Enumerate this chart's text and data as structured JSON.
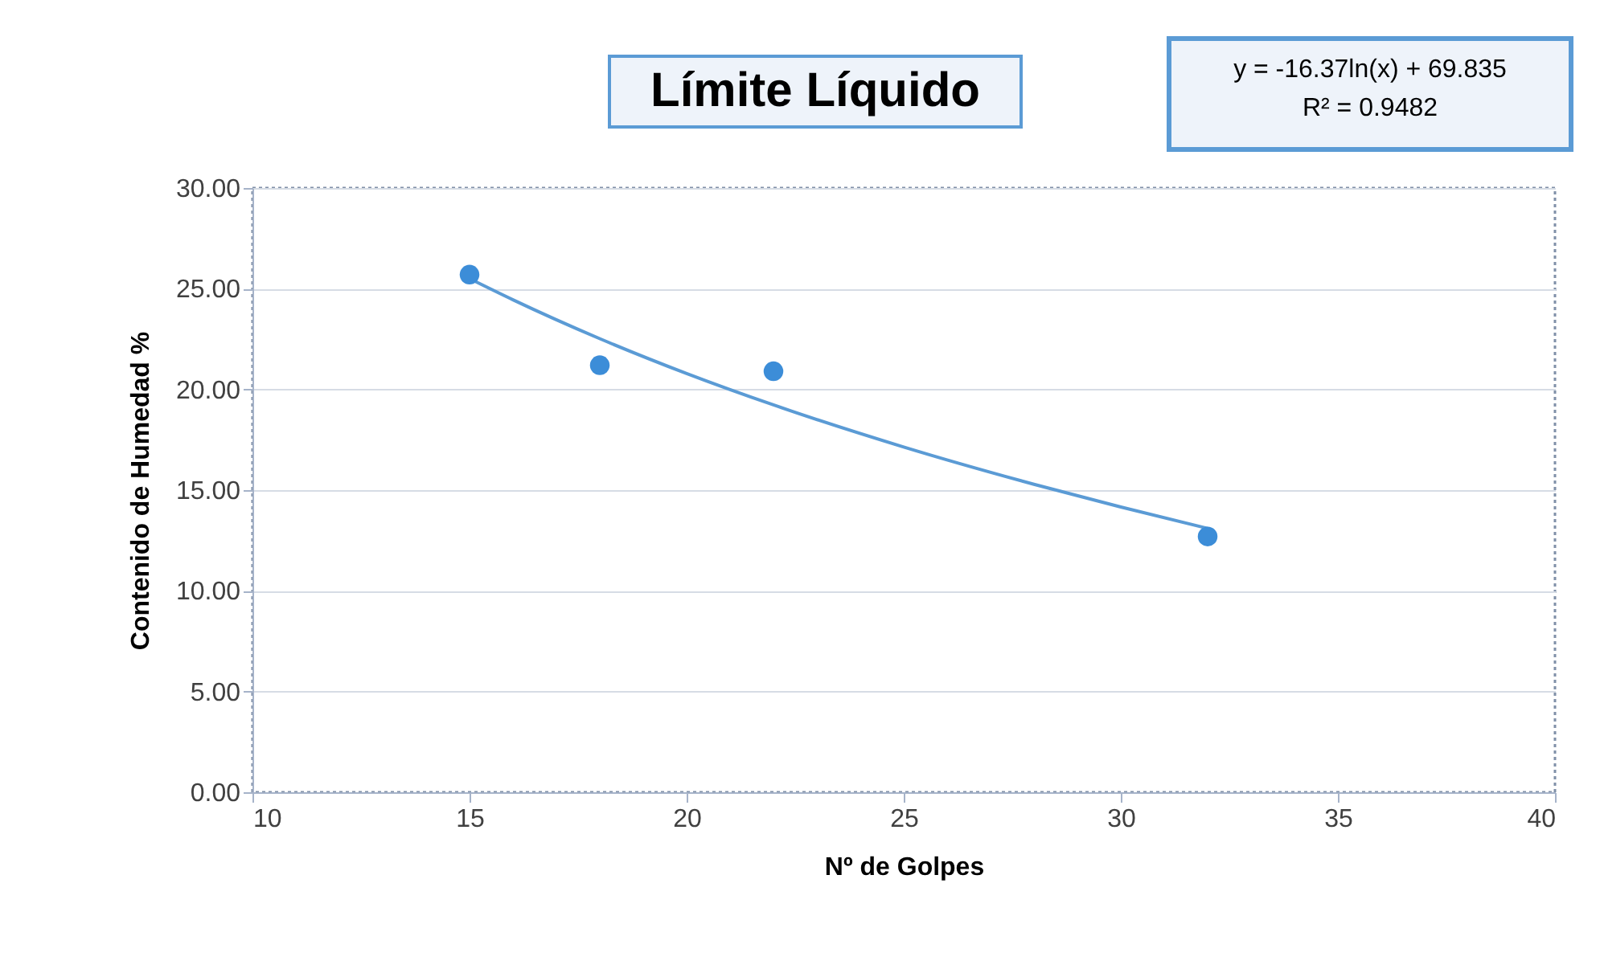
{
  "chart_data": {
    "type": "scatter",
    "title": "Límite Líquido",
    "xlabel": "Nº de Golpes",
    "ylabel": "Contenido de Humedad %",
    "annotations": [
      "y = -16.37ln(x) + 69.835",
      "R² = 0.9482"
    ],
    "series": [
      {
        "color": "#3c8dd8",
        "marker": "circle",
        "x": [
          15,
          18,
          22,
          32
        ],
        "values": [
          25.7,
          21.2,
          20.9,
          12.7
        ]
      },
      {
        "type": "line",
        "color": "#5b9bd5",
        "marker": "none",
        "x": [
          15,
          16,
          18,
          20,
          22,
          25,
          28,
          30,
          32
        ],
        "values": [
          25.5,
          24.45,
          22.52,
          20.79,
          19.23,
          17.14,
          15.29,
          14.16,
          13.1
        ]
      }
    ],
    "xlim": [
      10,
      40
    ],
    "xticks": [
      10,
      15,
      20,
      25,
      30,
      35,
      40
    ],
    "ylim": [
      0,
      30
    ],
    "yticks": [
      {
        "value": 0,
        "label": "0.00"
      },
      {
        "value": 5,
        "label": "5.00"
      },
      {
        "value": 10,
        "label": "10.00"
      },
      {
        "value": 15,
        "label": "15.00"
      },
      {
        "value": 20,
        "label": "20.00"
      },
      {
        "value": 25,
        "label": "25.00"
      },
      {
        "value": 30,
        "label": "30.00"
      }
    ],
    "grid": "y"
  }
}
